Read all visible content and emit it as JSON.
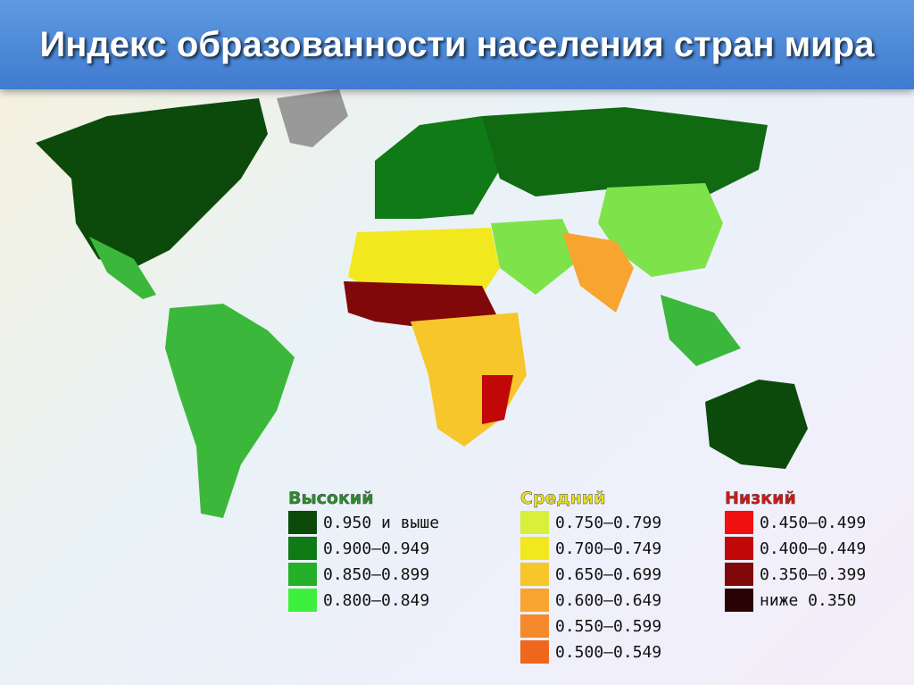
{
  "header": {
    "title": "Индекс образованности населения стран мира"
  },
  "legend": {
    "groups": [
      {
        "title": "Высокий",
        "color": "#2e8b2e",
        "items": [
          {
            "label": "0.950 и выше",
            "color": "#0b4a0b"
          },
          {
            "label": "0.900–0.949",
            "color": "#0f7a16"
          },
          {
            "label": "0.850–0.899",
            "color": "#25b02a"
          },
          {
            "label": "0.800–0.849",
            "color": "#3ef03e"
          }
        ]
      },
      {
        "title": "Средний",
        "color": "#e8e020",
        "items": [
          {
            "label": "0.750–0.799",
            "color": "#d8f03a"
          },
          {
            "label": "0.700–0.749",
            "color": "#f2e81e"
          },
          {
            "label": "0.650–0.699",
            "color": "#f6c62a"
          },
          {
            "label": "0.600–0.649",
            "color": "#f7a431"
          },
          {
            "label": "0.550–0.599",
            "color": "#f48a2c"
          },
          {
            "label": "0.500–0.549",
            "color": "#f0661c"
          }
        ]
      },
      {
        "title": "Низкий",
        "color": "#d01818",
        "items": [
          {
            "label": "0.450–0.499",
            "color": "#f01010"
          },
          {
            "label": "0.400–0.449",
            "color": "#c00808"
          },
          {
            "label": "0.350–0.399",
            "color": "#800808"
          },
          {
            "label": "ниже 0.350",
            "color": "#2a0404"
          }
        ]
      }
    ]
  }
}
